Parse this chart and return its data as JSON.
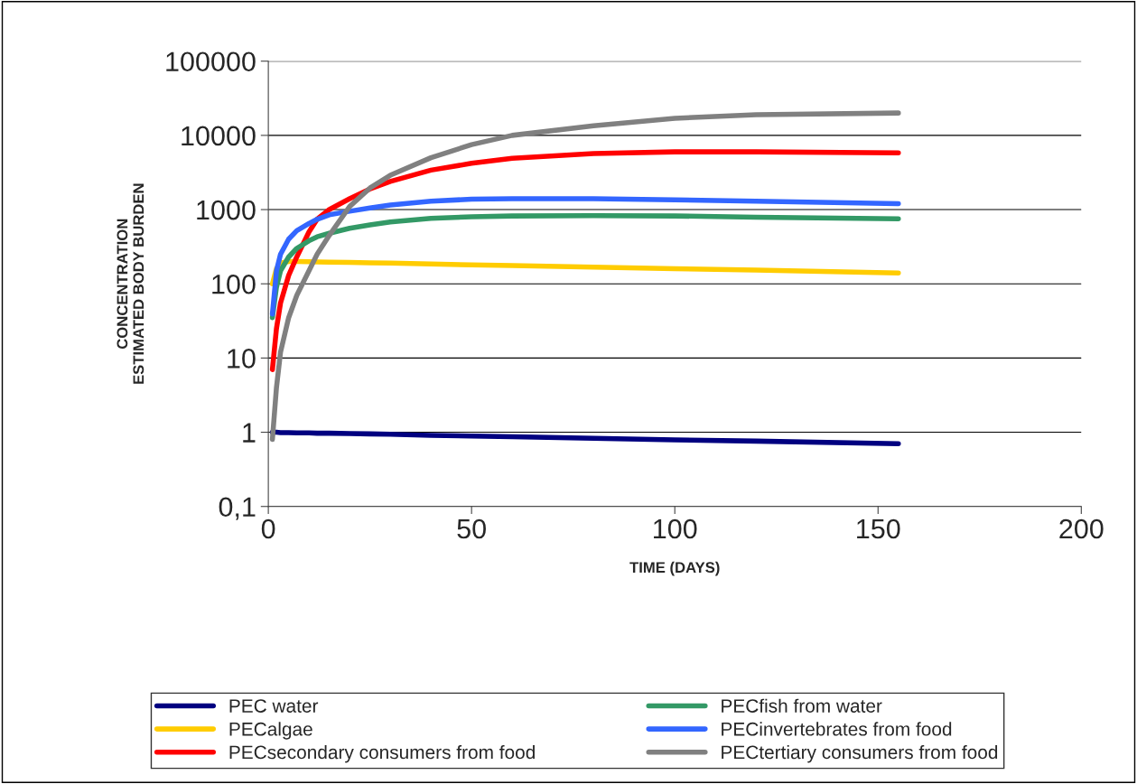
{
  "chart_data": {
    "type": "line",
    "xlabel": "TIME (DAYS)",
    "ylabel": "CONCENTRATION\nESTIMATED BODY BURDEN",
    "log": "y",
    "xlim": [
      0,
      200
    ],
    "xticks": [
      0,
      50,
      100,
      150,
      200
    ],
    "ylim": [
      0.1,
      100000
    ],
    "yticks": [
      {
        "value": 0.1,
        "label": "0,1"
      },
      1,
      10,
      100,
      1000,
      10000,
      100000
    ],
    "grid": "y",
    "legend": "bottom",
    "marker": "none",
    "line_style": "solid",
    "x": [
      1,
      2,
      3,
      5,
      7,
      10,
      12,
      15,
      20,
      25,
      30,
      40,
      50,
      60,
      80,
      100,
      120,
      155
    ],
    "series": [
      {
        "name": "PEC water",
        "color": "#000080",
        "values": [
          1,
          1,
          0.99,
          0.99,
          0.98,
          0.98,
          0.97,
          0.97,
          0.96,
          0.95,
          0.94,
          0.91,
          0.89,
          0.87,
          0.83,
          0.79,
          0.76,
          0.7
        ]
      },
      {
        "name": "PECalgae",
        "color": "#ffcc00",
        "values": [
          100,
          160,
          190,
          200,
          200,
          198,
          197,
          196,
          194,
          192,
          190,
          185,
          180,
          176,
          168,
          160,
          153,
          140
        ]
      },
      {
        "name": "PECsecondary consumers from food",
        "color": "#ff0000",
        "values": [
          7,
          25,
          55,
          130,
          230,
          500,
          740,
          1000,
          1400,
          1900,
          2400,
          3400,
          4200,
          4900,
          5700,
          6000,
          6000,
          5800
        ]
      },
      {
        "name": "PECfish from water",
        "color": "#339966",
        "values": [
          35,
          90,
          150,
          230,
          300,
          380,
          430,
          480,
          560,
          620,
          680,
          760,
          800,
          820,
          830,
          820,
          790,
          750
        ]
      },
      {
        "name": "PECinvertebrates from food",
        "color": "#3366ff",
        "values": [
          39,
          150,
          250,
          400,
          520,
          650,
          740,
          850,
          950,
          1050,
          1150,
          1300,
          1380,
          1400,
          1400,
          1350,
          1300,
          1200
        ]
      },
      {
        "name": "PECtertiary consumers from food",
        "color": "#808080",
        "values": [
          0.8,
          4,
          12,
          35,
          70,
          150,
          250,
          450,
          1100,
          1950,
          2900,
          5000,
          7500,
          10000,
          13500,
          17000,
          19000,
          20000
        ]
      }
    ]
  }
}
